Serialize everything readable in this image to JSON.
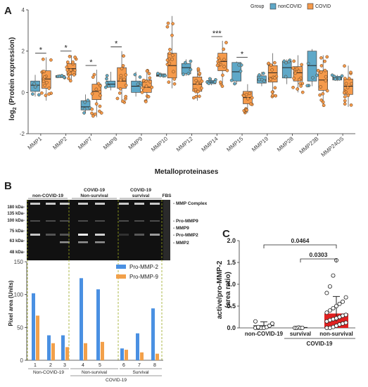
{
  "panels": {
    "a": "A",
    "b": "B",
    "c": "C"
  },
  "chart_data": [
    {
      "type": "box",
      "panel": "A",
      "xlabel": "Metalloproteinases",
      "ylabel_main": "log",
      "ylabel_sub": "2",
      "ylabel_rest": " (Protein expression)",
      "ylim": [
        -2,
        4
      ],
      "yticks": [
        "-2",
        "0",
        "2",
        "4"
      ],
      "legend": {
        "title": "Group",
        "items": [
          "nonCOVID",
          "COVID"
        ],
        "colors": [
          "#5fa8c8",
          "#f59a4b"
        ],
        "placement": "top-right"
      },
      "categories": [
        "MMP1",
        "MMP2",
        "MMP7",
        "MMP8",
        "MMP9",
        "MMP10",
        "MMP12",
        "MMP14",
        "MMP15",
        "MMP19",
        "MMP28",
        "MMP23B",
        "MMP24OS"
      ],
      "significance": [
        {
          "category": "MMP1",
          "label": "*"
        },
        {
          "category": "MMP2",
          "label": "*"
        },
        {
          "category": "MMP7",
          "label": "*"
        },
        {
          "category": "MMP8",
          "label": "*"
        },
        {
          "category": "MMP14",
          "label": "***"
        },
        {
          "category": "MMP15",
          "label": "*"
        }
      ],
      "series": [
        {
          "name": "nonCOVID",
          "boxes": [
            {
              "min": -0.2,
              "q1": 0.05,
              "median": 0.35,
              "q3": 0.55,
              "max": 0.85
            },
            {
              "min": 0.7,
              "q1": 0.72,
              "median": 0.78,
              "q3": 0.82,
              "max": 0.85
            },
            {
              "min": -1.0,
              "q1": -0.85,
              "median": -0.7,
              "q3": -0.4,
              "max": -0.1
            },
            {
              "min": 0.1,
              "q1": 0.25,
              "median": 0.4,
              "q3": 0.55,
              "max": 1.0
            },
            {
              "min": -0.2,
              "q1": 0.0,
              "median": 0.3,
              "q3": 0.55,
              "max": 1.0
            },
            {
              "min": 0.75,
              "q1": 0.78,
              "median": 0.82,
              "q3": 0.9,
              "max": 0.95
            },
            {
              "min": 0.8,
              "q1": 0.9,
              "median": 1.2,
              "q3": 1.4,
              "max": 1.6
            },
            {
              "min": 0.35,
              "q1": 0.42,
              "median": 0.5,
              "q3": 0.58,
              "max": 0.7
            },
            {
              "min": 0.4,
              "q1": 0.55,
              "median": 1.0,
              "q3": 1.45,
              "max": 1.5
            },
            {
              "min": 0.3,
              "q1": 0.45,
              "median": 0.6,
              "q3": 0.8,
              "max": 1.0
            },
            {
              "min": 0.4,
              "q1": 0.7,
              "median": 1.2,
              "q3": 1.5,
              "max": 1.6
            },
            {
              "min": 0.3,
              "q1": 0.55,
              "median": 1.3,
              "q3": 2.0,
              "max": 2.1
            },
            {
              "min": 0.55,
              "q1": 0.6,
              "median": 0.7,
              "q3": 0.78,
              "max": 0.85
            }
          ]
        },
        {
          "name": "COVID",
          "boxes": [
            {
              "min": -0.4,
              "q1": 0.2,
              "median": 0.65,
              "q3": 1.05,
              "max": 1.7
            },
            {
              "min": 0.5,
              "q1": 0.85,
              "median": 1.15,
              "q3": 1.4,
              "max": 1.8
            },
            {
              "min": -1.2,
              "q1": -0.35,
              "median": 0.05,
              "q3": 0.4,
              "max": 1.1
            },
            {
              "min": -0.5,
              "q1": 0.2,
              "median": 0.55,
              "q3": 1.2,
              "max": 2.0
            },
            {
              "min": -0.5,
              "q1": 0.0,
              "median": 0.25,
              "q3": 0.6,
              "max": 1.1
            },
            {
              "min": 0.2,
              "q1": 0.7,
              "median": 1.3,
              "q3": 1.9,
              "max": 3.7
            },
            {
              "min": -0.4,
              "q1": 0.05,
              "median": 0.4,
              "q3": 0.75,
              "max": 1.2
            },
            {
              "min": 0.3,
              "q1": 1.05,
              "median": 1.5,
              "q3": 1.9,
              "max": 2.5
            },
            {
              "min": -1.0,
              "q1": -0.55,
              "median": -0.25,
              "q3": 0.05,
              "max": 0.4
            },
            {
              "min": -0.2,
              "q1": 0.5,
              "median": 0.95,
              "q3": 1.3,
              "max": 1.9
            },
            {
              "min": 0.0,
              "q1": 0.55,
              "median": 0.95,
              "q3": 1.25,
              "max": 1.8
            },
            {
              "min": -0.7,
              "q1": 0.1,
              "median": 0.6,
              "q3": 1.05,
              "max": 1.8
            },
            {
              "min": -0.7,
              "q1": -0.1,
              "median": 0.3,
              "q3": 0.65,
              "max": 1.3
            }
          ]
        }
      ]
    },
    {
      "type": "bar",
      "panel": "B",
      "ylabel": "Pixel area (Units)",
      "ylim": [
        0,
        150
      ],
      "yticks": [
        "0",
        "50",
        "100",
        "150"
      ],
      "categories": [
        "1",
        "2",
        "3",
        "4",
        "5",
        "6",
        "7",
        "8"
      ],
      "group_labels": [
        "Non-COVID-19",
        "Non-survival",
        "Survival"
      ],
      "super_label": "COVID-19",
      "series": [
        {
          "name": "Pro-MMP-2",
          "color": "#4a90e2",
          "values": [
            102,
            38,
            38,
            125,
            108,
            18,
            41,
            79
          ]
        },
        {
          "name": "Pro-MMP-9",
          "color": "#f2a04a",
          "values": [
            68,
            26,
            20,
            26,
            28,
            16,
            12,
            10
          ]
        }
      ]
    },
    {
      "type": "scatter",
      "panel": "C",
      "ylabel_line1": "active/pro-MMP-2",
      "ylabel_line2": "(area ratio)",
      "ylim": [
        0,
        2.0
      ],
      "yticks": [
        "0.0",
        "0.5",
        "1.0",
        "1.5",
        "2.0"
      ],
      "categories": [
        "non-COVID-19",
        "survival",
        "non-survival"
      ],
      "super_label": "COVID-19",
      "bar_values": [
        0.05,
        0.01,
        0.33
      ],
      "error_bars": [
        [
          0.0,
          0.14
        ],
        [
          0.0,
          0.03
        ],
        [
          0.15,
          0.72
        ]
      ],
      "points": [
        [
          0.0,
          0.0,
          0.0,
          0.0,
          0.02,
          0.05,
          0.1,
          0.15,
          0.02
        ],
        [
          0.0,
          0.0,
          0.01,
          0.0,
          0.0
        ],
        [
          0.0,
          0.0,
          0.02,
          0.05,
          0.08,
          0.1,
          0.12,
          0.15,
          0.18,
          0.2,
          0.22,
          0.25,
          0.28,
          0.3,
          0.35,
          0.4,
          0.45,
          0.5,
          0.55,
          0.6,
          0.7,
          0.8,
          0.95,
          1.2,
          1.55
        ]
      ],
      "comparisons": [
        {
          "from": 0,
          "to": 2,
          "label": "0.0464"
        },
        {
          "from": 1,
          "to": 2,
          "label": "0.0303"
        }
      ],
      "bar_color": "#e02020"
    }
  ],
  "gel": {
    "group_labels": [
      "non-COVID-19",
      "COVID-19",
      "Non-survival",
      "COVID-19",
      "survival",
      "FBS"
    ],
    "markers": [
      "180 kDa-",
      "135 kDa-",
      "100 kDa-",
      "75 kDa-",
      "63 kDa-",
      "48 kDa-"
    ],
    "band_labels": [
      "- MMP Complex",
      "- Pro-MMP9",
      "- MMP9",
      "- Pro-MMP2",
      "- MMP2"
    ]
  }
}
